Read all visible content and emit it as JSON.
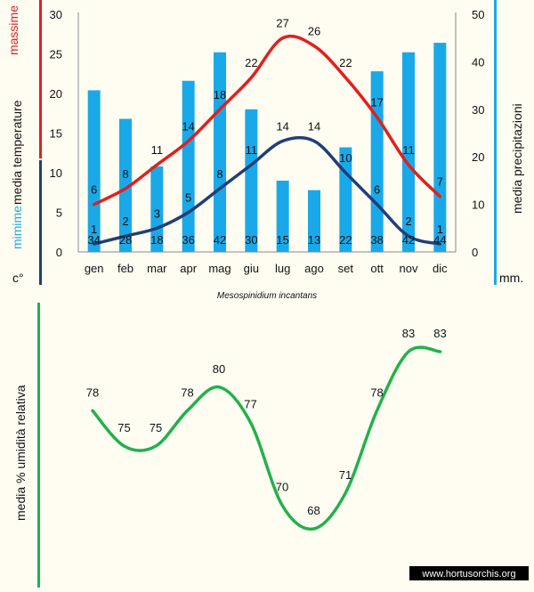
{
  "chart_data": [
    {
      "type": "bar+line",
      "categories": [
        "gen",
        "feb",
        "mar",
        "apr",
        "mag",
        "giu",
        "lug",
        "ago",
        "set",
        "ott",
        "nov",
        "dic"
      ],
      "y_left_ticks": [
        "0",
        "5",
        "10",
        "15",
        "20",
        "25",
        "30"
      ],
      "y_right_ticks": [
        "0",
        "10",
        "20",
        "30",
        "40",
        "50"
      ],
      "ylim_left": [
        0,
        30
      ],
      "ylim_right": [
        0,
        50
      ],
      "left_label_high": "massime",
      "left_label_mid": "media  temperature",
      "left_label_low": "mimime",
      "left_unit": "c°",
      "right_label": "media  precipitazioni",
      "right_unit": "mm.",
      "caption": "Mesospinidium  incantans",
      "series": [
        {
          "values": [
            34,
            28,
            18,
            36,
            42,
            30,
            15,
            13,
            22,
            38,
            42,
            44
          ],
          "axis": "right",
          "color": "#1aa9e8",
          "kind": "bar"
        },
        {
          "values": [
            6,
            8,
            11,
            14,
            18,
            22,
            27,
            26,
            22,
            17,
            11,
            7
          ],
          "axis": "left",
          "color": "#e02020",
          "kind": "line"
        },
        {
          "values": [
            1,
            2,
            3,
            5,
            8,
            11,
            14,
            14,
            10,
            6,
            2,
            1
          ],
          "axis": "left",
          "color": "#1f3f7a",
          "kind": "line"
        }
      ],
      "colors": {
        "max": "#e02020",
        "min": "#1f3f7a",
        "bars": "#1aa9e8",
        "grid": "none"
      }
    },
    {
      "type": "line",
      "ylabel": "media  %  umidità relativa",
      "series": [
        {
          "values": [
            78,
            75,
            75,
            78,
            80,
            77,
            70,
            68,
            71,
            78,
            83,
            83
          ],
          "color": "#22b14c"
        }
      ]
    }
  ],
  "watermark": "www.hortusorchis.org"
}
